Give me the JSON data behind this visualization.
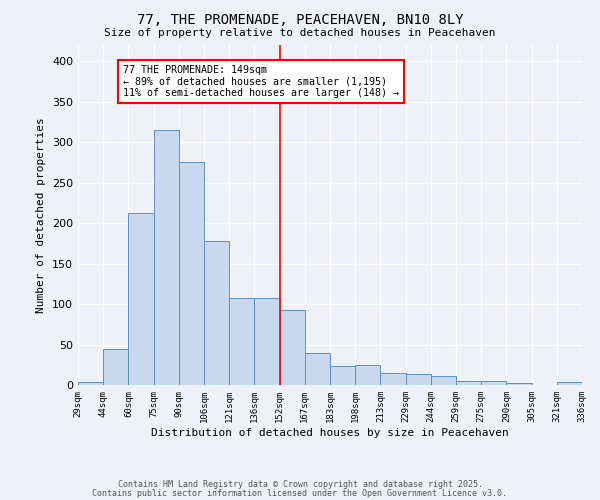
{
  "title": "77, THE PROMENADE, PEACEHAVEN, BN10 8LY",
  "subtitle": "Size of property relative to detached houses in Peacehaven",
  "xlabel": "Distribution of detached houses by size in Peacehaven",
  "ylabel": "Number of detached properties",
  "bar_color": "#c8d8ee",
  "bar_edge_color": "#6090c0",
  "bar_heights": [
    4,
    44,
    212,
    315,
    275,
    178,
    108,
    108,
    93,
    40,
    23,
    25,
    15,
    13,
    11,
    5,
    5,
    3,
    0,
    4
  ],
  "bin_labels": [
    "29sqm",
    "44sqm",
    "60sqm",
    "75sqm",
    "90sqm",
    "106sqm",
    "121sqm",
    "136sqm",
    "152sqm",
    "167sqm",
    "183sqm",
    "198sqm",
    "213sqm",
    "229sqm",
    "244sqm",
    "259sqm",
    "275sqm",
    "290sqm",
    "305sqm",
    "321sqm",
    "336sqm"
  ],
  "ylim": [
    0,
    420
  ],
  "yticks": [
    0,
    50,
    100,
    150,
    200,
    250,
    300,
    350,
    400
  ],
  "red_line_x": 8.0,
  "annotation_title": "77 THE PROMENADE: 149sqm",
  "annotation_line1": "← 89% of detached houses are smaller (1,195)",
  "annotation_line2": "11% of semi-detached houses are larger (148) →",
  "background_color": "#eef2f8",
  "footer_line1": "Contains HM Land Registry data © Crown copyright and database right 2025.",
  "footer_line2": "Contains public sector information licensed under the Open Government Licence v3.0."
}
